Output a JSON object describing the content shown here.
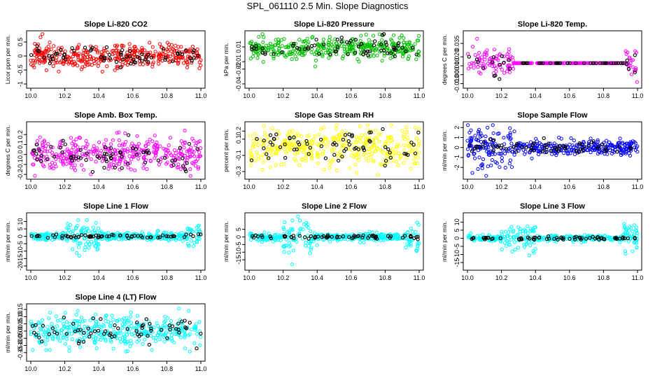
{
  "page_title": "SPL_061110  2.5 Min. Slope Diagnostics",
  "colors": {
    "black": "#000000"
  },
  "chart_data": [
    {
      "type": "scatter",
      "title": "Slope Li-820 CO2",
      "ylabel": "Licor ppm per min.",
      "color": "#ff0000",
      "xlim": [
        10.0,
        11.0
      ],
      "ylim": [
        -1.05,
        0.8
      ],
      "xticks": [
        10.0,
        10.2,
        10.4,
        10.6,
        10.8,
        11.0
      ],
      "xtick_labels": [
        "10.0",
        "10.2",
        "10.4",
        "10.6",
        "10.8",
        "11.0"
      ],
      "yticks": [
        -1,
        -0.5,
        0,
        0.5
      ],
      "ytick_labels": [
        "-1",
        "-0.5",
        "0",
        "0.5"
      ],
      "points": {
        "count": 380,
        "pattern": "steady",
        "spread": 0.22,
        "offset": 0.0,
        "seed": 11
      }
    },
    {
      "type": "scatter",
      "title": "Slope Li-820 Pressure",
      "ylabel": "kPa per min.",
      "color": "#00c000",
      "xlim": [
        10.0,
        11.0
      ],
      "ylim": [
        -0.042,
        0.028
      ],
      "xticks": [
        10.0,
        10.2,
        10.4,
        10.6,
        10.8,
        11.0
      ],
      "xtick_labels": [
        "10.0",
        "10.2",
        "10.4",
        "10.6",
        "10.8",
        "11.0"
      ],
      "yticks": [
        -0.04,
        -0.02,
        -0.01,
        0.01
      ],
      "ytick_labels": [
        "-0.04",
        "-0.02",
        "-0.01",
        "0.01"
      ],
      "points": {
        "count": 380,
        "pattern": "steady",
        "spread": 0.007,
        "offset": 0.009,
        "seed": 23
      }
    },
    {
      "type": "scatter",
      "title": "Slope Li-820 Temp.",
      "ylabel": "degrees C per min.",
      "color": "#ff00ff",
      "xlim": [
        10.0,
        11.0
      ],
      "ylim": [
        -0.012,
        0.046
      ],
      "xticks": [
        10.0,
        10.2,
        10.4,
        10.6,
        10.8,
        11.0
      ],
      "xtick_labels": [
        "10.0",
        "10.2",
        "10.4",
        "10.6",
        "10.8",
        "11.0"
      ],
      "yticks": [
        -0.01,
        0.0,
        0.01,
        0.02,
        0.035
      ],
      "ytick_labels": [
        "-0.010",
        "0.000",
        "0.010",
        "0.020",
        "0.035"
      ],
      "points": {
        "count": 320,
        "pattern": "flat-middle",
        "spread": 0.009,
        "offset": 0.013,
        "seed": 37
      }
    },
    {
      "type": "scatter",
      "title": "Slope Amb. Box Temp.",
      "ylabel": "degrees C per min.",
      "color": "#ff00ff",
      "xlim": [
        10.0,
        11.0
      ],
      "ylim": [
        -0.22,
        0.3
      ],
      "xticks": [
        10.0,
        10.2,
        10.4,
        10.6,
        10.8,
        11.0
      ],
      "xtick_labels": [
        "10.0",
        "10.2",
        "10.4",
        "10.6",
        "10.8",
        "11.0"
      ],
      "yticks": [
        -0.2,
        -0.1,
        0.0,
        0.1,
        0.2
      ],
      "ytick_labels": [
        "-0.2",
        "-0.1",
        "0.0",
        "0.1",
        "0.2"
      ],
      "points": {
        "count": 380,
        "pattern": "steady",
        "spread": 0.085,
        "offset": 0.0,
        "seed": 41
      }
    },
    {
      "type": "scatter",
      "title": "Slope Gas Stream RH",
      "ylabel": "percent per min.",
      "color": "#ffff00",
      "xlim": [
        10.0,
        11.0
      ],
      "ylim": [
        -0.36,
        0.28
      ],
      "xticks": [
        10.0,
        10.2,
        10.4,
        10.6,
        10.8,
        11.0
      ],
      "xtick_labels": [
        "10.0",
        "10.2",
        "10.4",
        "10.6",
        "10.8",
        "11.0"
      ],
      "yticks": [
        -0.3,
        -0.1,
        0.1,
        0.2
      ],
      "ytick_labels": [
        "-0.3",
        "-0.1",
        "0.1",
        "0.2"
      ],
      "points": {
        "count": 380,
        "pattern": "steady",
        "spread": 0.12,
        "offset": 0.0,
        "seed": 53
      }
    },
    {
      "type": "scatter",
      "title": "Slope Sample Flow",
      "ylabel": "ml/min per min.",
      "color": "#0000ff",
      "xlim": [
        10.0,
        11.0
      ],
      "ylim": [
        -2.9,
        2.3
      ],
      "xticks": [
        10.0,
        10.2,
        10.4,
        10.6,
        10.8,
        11.0
      ],
      "xtick_labels": [
        "10.0",
        "10.2",
        "10.4",
        "10.6",
        "10.8",
        "11.0"
      ],
      "yticks": [
        -2,
        -1,
        0,
        1,
        2
      ],
      "ytick_labels": [
        "-2",
        "-1",
        "0",
        "1",
        "2"
      ],
      "points": {
        "count": 380,
        "pattern": "early-burst",
        "spread": 0.35,
        "offset": 0.0,
        "seed": 67
      }
    },
    {
      "type": "scatter",
      "title": "Slope Line 1 Flow",
      "ylabel": "ml/min per min.",
      "color": "#00ffff",
      "xlim": [
        10.0,
        11.0
      ],
      "ylim": [
        -21,
        14
      ],
      "xticks": [
        10.0,
        10.2,
        10.4,
        10.6,
        10.8,
        11.0
      ],
      "xtick_labels": [
        "10.0",
        "10.2",
        "10.4",
        "10.6",
        "10.8",
        "11.0"
      ],
      "yticks": [
        -20,
        -15,
        -10,
        -5,
        0,
        5,
        10
      ],
      "ytick_labels": [
        "-20",
        "-15",
        "-10",
        "-5",
        "0",
        "5",
        "10"
      ],
      "points": {
        "count": 380,
        "pattern": "bursts",
        "spread": 1.2,
        "offset": 0.0,
        "seed": 79
      }
    },
    {
      "type": "scatter",
      "title": "Slope Line 2 Flow",
      "ylabel": "ml/min per min.",
      "color": "#00ffff",
      "xlim": [
        10.0,
        11.0
      ],
      "ylim": [
        -20,
        14
      ],
      "xticks": [
        10.0,
        10.2,
        10.4,
        10.6,
        10.8,
        11.0
      ],
      "xtick_labels": [
        "10.0",
        "10.2",
        "10.4",
        "10.6",
        "10.8",
        "11.0"
      ],
      "yticks": [
        -15,
        -10,
        -5,
        0,
        5
      ],
      "ytick_labels": [
        "-15",
        "-10",
        "-5",
        "0",
        "5"
      ],
      "points": {
        "count": 380,
        "pattern": "bursts",
        "spread": 1.2,
        "offset": 0.0,
        "seed": 83
      }
    },
    {
      "type": "scatter",
      "title": "Slope Line 3 Flow",
      "ylabel": "ml/min per min.",
      "color": "#00ffff",
      "xlim": [
        10.0,
        11.0
      ],
      "ylim": [
        -18,
        14
      ],
      "xticks": [
        10.0,
        10.2,
        10.4,
        10.6,
        10.8,
        11.0
      ],
      "xtick_labels": [
        "10.0",
        "10.2",
        "10.4",
        "10.6",
        "10.8",
        "11.0"
      ],
      "yticks": [
        -15,
        -10,
        -5,
        0,
        5,
        10
      ],
      "ytick_labels": [
        "-15",
        "-10",
        "-5",
        "0",
        "5",
        "10"
      ],
      "points": {
        "count": 380,
        "pattern": "bursts",
        "spread": 1.0,
        "offset": 0.0,
        "seed": 97
      }
    },
    {
      "type": "scatter",
      "title": "Slope Line 4 (LT) Flow",
      "ylabel": "ml/min per min.",
      "color": "#00ffff",
      "xlim": [
        10.0,
        11.0
      ],
      "ylim": [
        -0.19,
        0.17
      ],
      "xticks": [
        10.0,
        10.2,
        10.4,
        10.6,
        10.8,
        11.0
      ],
      "xtick_labels": [
        "10.0",
        "10.2",
        "10.4",
        "10.6",
        "10.8",
        "11.0"
      ],
      "yticks": [
        -0.15,
        -0.1,
        -0.05,
        0.0,
        0.05,
        0.1,
        0.15
      ],
      "ytick_labels": [
        "-0.15",
        "-0.10",
        "-0.05",
        "0.00",
        "0.05",
        "0.10",
        "0.15"
      ],
      "points": {
        "count": 380,
        "pattern": "steady",
        "spread": 0.055,
        "offset": 0.0,
        "seed": 101
      }
    }
  ]
}
